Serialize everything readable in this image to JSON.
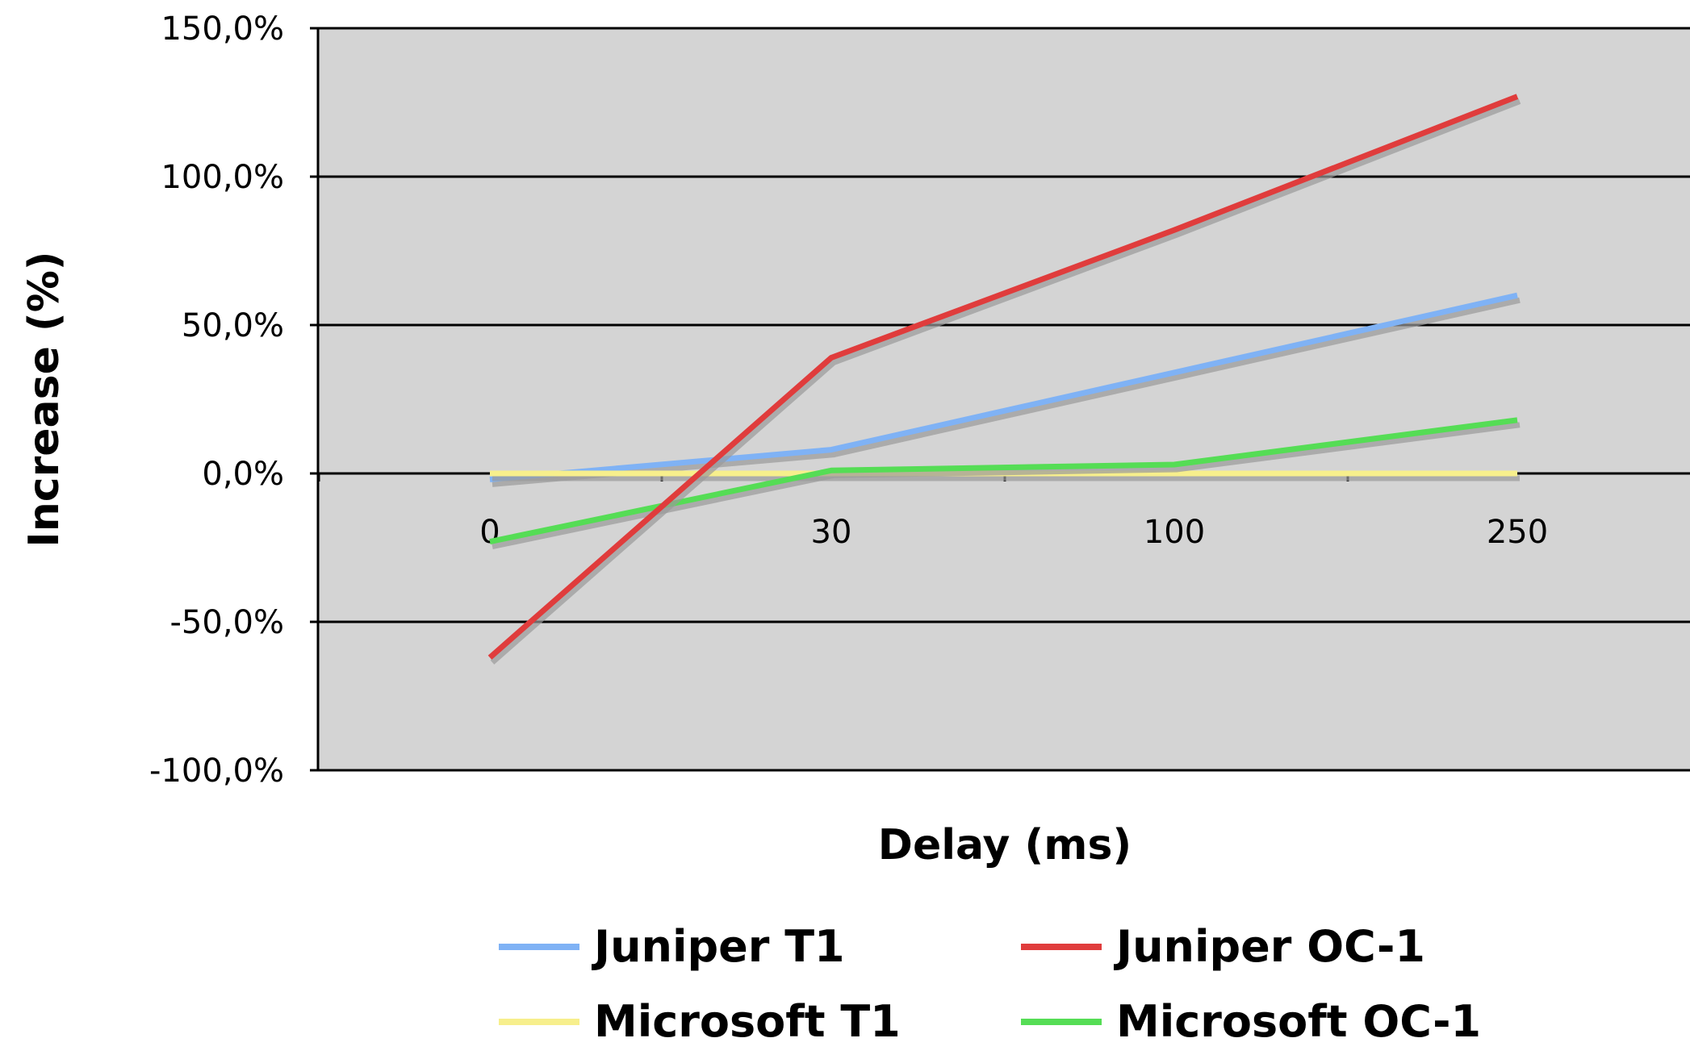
{
  "chart_data": {
    "type": "line",
    "title": "",
    "xlabel": "Delay (ms)",
    "ylabel": "Increase (%)",
    "categories": [
      "0",
      "30",
      "100",
      "250"
    ],
    "ylim": [
      -100,
      150
    ],
    "yticks": [
      -100,
      -50,
      0,
      50,
      100,
      150
    ],
    "ytick_labels": [
      "-100,0%",
      "-50,0%",
      "0,0%",
      "50,0%",
      "100,0%",
      "150,0%"
    ],
    "grid": true,
    "legend_position": "bottom",
    "plot_background": "#d4d4d4",
    "series": [
      {
        "name": "Juniper T1",
        "color": "#7fb2f5",
        "values": [
          -2,
          8,
          34,
          60
        ]
      },
      {
        "name": "Juniper OC-1",
        "color": "#e03c3c",
        "values": [
          -62,
          39,
          82,
          127
        ]
      },
      {
        "name": "Microsoft T1",
        "color": "#f7ef8c",
        "values": [
          0,
          0,
          0,
          0
        ]
      },
      {
        "name": "Microsoft OC-1",
        "color": "#55dd55",
        "values": [
          -23,
          1,
          3,
          18
        ]
      }
    ]
  }
}
